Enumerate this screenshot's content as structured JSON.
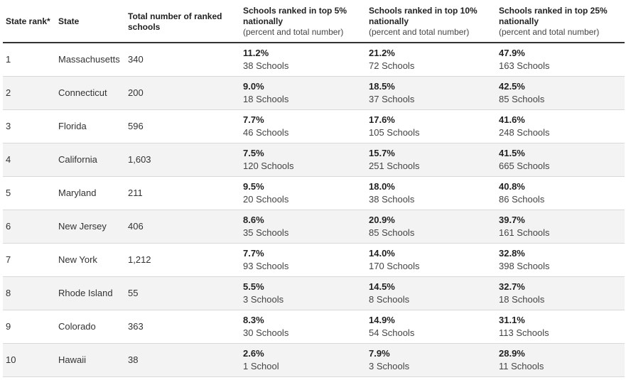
{
  "headers": {
    "rank": "State rank*",
    "state": "State",
    "total": "Total number of ranked schools",
    "top5": "Schools ranked in top 5% nationally",
    "top10": "Schools ranked in top 10% nationally",
    "top25": "Schools ranked in top 25% nationally",
    "sub": "(percent and total number)"
  },
  "rows": [
    {
      "rank": "1",
      "state": "Massachusetts",
      "total": "340",
      "t5p": "11.2%",
      "t5n": "38 Schools",
      "t10p": "21.2%",
      "t10n": "72 Schools",
      "t25p": "47.9%",
      "t25n": "163 Schools"
    },
    {
      "rank": "2",
      "state": "Connecticut",
      "total": "200",
      "t5p": "9.0%",
      "t5n": "18 Schools",
      "t10p": "18.5%",
      "t10n": "37 Schools",
      "t25p": "42.5%",
      "t25n": "85 Schools"
    },
    {
      "rank": "3",
      "state": "Florida",
      "total": "596",
      "t5p": "7.7%",
      "t5n": "46 Schools",
      "t10p": "17.6%",
      "t10n": "105 Schools",
      "t25p": "41.6%",
      "t25n": "248 Schools"
    },
    {
      "rank": "4",
      "state": "California",
      "total": "1,603",
      "t5p": "7.5%",
      "t5n": "120 Schools",
      "t10p": "15.7%",
      "t10n": "251 Schools",
      "t25p": "41.5%",
      "t25n": "665 Schools"
    },
    {
      "rank": "5",
      "state": "Maryland",
      "total": "211",
      "t5p": "9.5%",
      "t5n": "20 Schools",
      "t10p": "18.0%",
      "t10n": "38 Schools",
      "t25p": "40.8%",
      "t25n": "86 Schools"
    },
    {
      "rank": "6",
      "state": "New Jersey",
      "total": "406",
      "t5p": "8.6%",
      "t5n": "35 Schools",
      "t10p": "20.9%",
      "t10n": "85 Schools",
      "t25p": "39.7%",
      "t25n": "161 Schools"
    },
    {
      "rank": "7",
      "state": "New York",
      "total": "1,212",
      "t5p": "7.7%",
      "t5n": "93 Schools",
      "t10p": "14.0%",
      "t10n": "170 Schools",
      "t25p": "32.8%",
      "t25n": "398 Schools"
    },
    {
      "rank": "8",
      "state": "Rhode Island",
      "total": "55",
      "t5p": "5.5%",
      "t5n": "3 Schools",
      "t10p": "14.5%",
      "t10n": "8 Schools",
      "t25p": "32.7%",
      "t25n": "18 Schools"
    },
    {
      "rank": "9",
      "state": "Colorado",
      "total": "363",
      "t5p": "8.3%",
      "t5n": "30 Schools",
      "t10p": "14.9%",
      "t10n": "54 Schools",
      "t25p": "31.1%",
      "t25n": "113 Schools"
    },
    {
      "rank": "10",
      "state": "Hawaii",
      "total": "38",
      "t5p": "2.6%",
      "t5n": "1 School",
      "t10p": "7.9%",
      "t10n": "3 Schools",
      "t25p": "28.9%",
      "t25n": "11 Schools"
    }
  ]
}
